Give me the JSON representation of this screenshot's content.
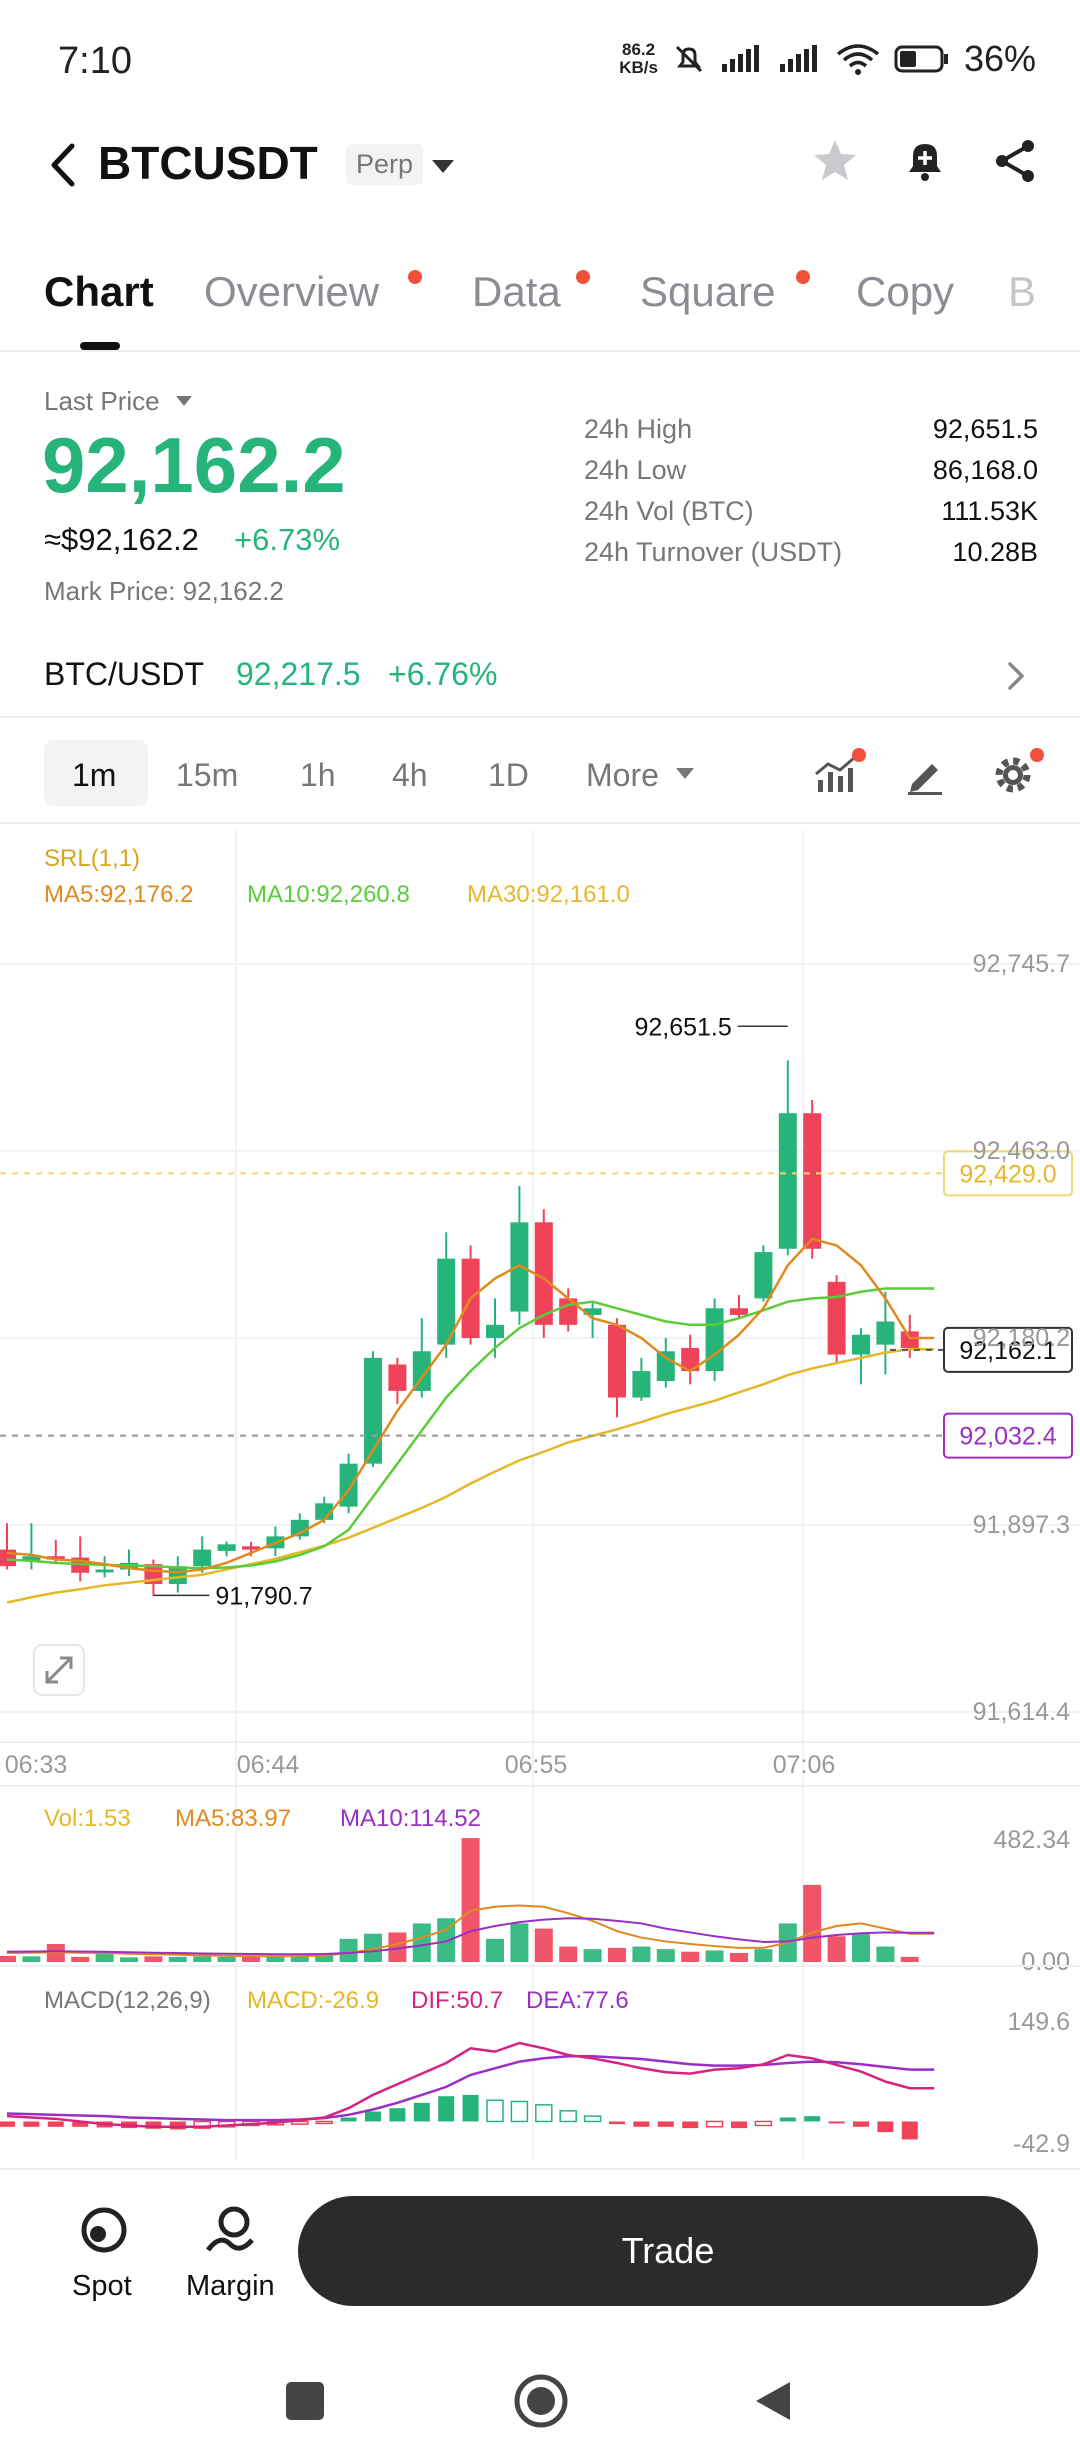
{
  "status_bar": {
    "time": "7:10",
    "net_speed_value": "86.2",
    "net_speed_unit": "KB/s",
    "battery": "36%"
  },
  "header": {
    "title": "BTCUSDT",
    "badge": "Perp"
  },
  "tabs": [
    {
      "label": "Chart",
      "active": true,
      "dot": false
    },
    {
      "label": "Overview",
      "active": false,
      "dot": true
    },
    {
      "label": "Data",
      "active": false,
      "dot": true
    },
    {
      "label": "Square",
      "active": false,
      "dot": true
    },
    {
      "label": "Copy",
      "active": false,
      "dot": false
    },
    {
      "label": "B",
      "active": false,
      "dot": false
    }
  ],
  "price": {
    "last_price_label": "Last Price",
    "last_price": "92,162.2",
    "usd_price": "≈$92,162.2",
    "change": "+6.73%",
    "mark_price": "Mark Price:  92,162.2"
  },
  "stats": [
    {
      "label": "24h High",
      "value": "92,651.5"
    },
    {
      "label": "24h Low",
      "value": "86,168.0"
    },
    {
      "label": "24h Vol (BTC)",
      "value": "111.53K"
    },
    {
      "label": "24h Turnover (USDT)",
      "value": "10.28B"
    }
  ],
  "spot_pair": {
    "pair": "BTC/USDT",
    "price": "92,217.5",
    "change": "+6.76%"
  },
  "timeframes": [
    "1m",
    "15m",
    "1h",
    "4h",
    "1D",
    "More"
  ],
  "colors": {
    "up": "#27b47a",
    "down": "#f0435a",
    "ma5": "#e08a1e",
    "ma10": "#5bcc3a",
    "ma30": "#e6b829",
    "macd_dif": "#d4247f",
    "macd_dea": "#9b2fc4",
    "vol_ma10": "#9b2fc4"
  },
  "chart_data": {
    "type": "candlestick",
    "indicator_srl": "SRL(1,1)",
    "ma_labels": [
      "MA5:92,176.2",
      "MA10:92,260.8",
      "MA30:92,161.0"
    ],
    "y_ticks": [
      "92,745.7",
      "92,463.0",
      "92,180.2",
      "91,897.3",
      "91,614.4"
    ],
    "y_tick_values": [
      92745.7,
      92463.0,
      92180.2,
      91897.3,
      91614.4
    ],
    "x_ticks": [
      "06:33",
      "06:44",
      "06:55",
      "07:06"
    ],
    "high_marker": {
      "label": "92,651.5",
      "value": 92651.5
    },
    "low_marker": {
      "label": "91,790.7",
      "value": 91790.7
    },
    "price_tags": [
      {
        "label": "92,429.0",
        "value": 92429.0,
        "style": "yellow"
      },
      {
        "label": "92,162.1",
        "value": 92162.1,
        "style": "black"
      },
      {
        "label": "92,032.4",
        "value": 92032.4,
        "style": "purple"
      }
    ],
    "candles": [
      {
        "o": 91860,
        "h": 91900,
        "l": 91830,
        "c": 91835
      },
      {
        "o": 91842,
        "h": 91900,
        "l": 91830,
        "c": 91850
      },
      {
        "o": 91850,
        "h": 91875,
        "l": 91840,
        "c": 91845
      },
      {
        "o": 91848,
        "h": 91880,
        "l": 91812,
        "c": 91825
      },
      {
        "o": 91828,
        "h": 91850,
        "l": 91818,
        "c": 91830
      },
      {
        "o": 91830,
        "h": 91860,
        "l": 91820,
        "c": 91840
      },
      {
        "o": 91838,
        "h": 91845,
        "l": 91790,
        "c": 91808
      },
      {
        "o": 91808,
        "h": 91850,
        "l": 91795,
        "c": 91835
      },
      {
        "o": 91835,
        "h": 91880,
        "l": 91825,
        "c": 91860
      },
      {
        "o": 91858,
        "h": 91872,
        "l": 91850,
        "c": 91868
      },
      {
        "o": 91865,
        "h": 91872,
        "l": 91850,
        "c": 91860
      },
      {
        "o": 91862,
        "h": 91895,
        "l": 91850,
        "c": 91880
      },
      {
        "o": 91880,
        "h": 91915,
        "l": 91875,
        "c": 91905
      },
      {
        "o": 91905,
        "h": 91940,
        "l": 91900,
        "c": 91930
      },
      {
        "o": 91925,
        "h": 92005,
        "l": 91915,
        "c": 91990
      },
      {
        "o": 91990,
        "h": 92160,
        "l": 91985,
        "c": 92150
      },
      {
        "o": 92140,
        "h": 92150,
        "l": 92080,
        "c": 92100
      },
      {
        "o": 92100,
        "h": 92210,
        "l": 92090,
        "c": 92160
      },
      {
        "o": 92170,
        "h": 92340,
        "l": 92150,
        "c": 92300
      },
      {
        "o": 92300,
        "h": 92320,
        "l": 92170,
        "c": 92180
      },
      {
        "o": 92180,
        "h": 92240,
        "l": 92150,
        "c": 92200
      },
      {
        "o": 92220,
        "h": 92410,
        "l": 92200,
        "c": 92355
      },
      {
        "o": 92355,
        "h": 92375,
        "l": 92180,
        "c": 92200
      },
      {
        "o": 92240,
        "h": 92255,
        "l": 92190,
        "c": 92200
      },
      {
        "o": 92215,
        "h": 92235,
        "l": 92180,
        "c": 92225
      },
      {
        "o": 92200,
        "h": 92210,
        "l": 92060,
        "c": 92090
      },
      {
        "o": 92090,
        "h": 92150,
        "l": 92085,
        "c": 92130
      },
      {
        "o": 92115,
        "h": 92180,
        "l": 92105,
        "c": 92160
      },
      {
        "o": 92165,
        "h": 92185,
        "l": 92110,
        "c": 92130
      },
      {
        "o": 92130,
        "h": 92240,
        "l": 92115,
        "c": 92225
      },
      {
        "o": 92225,
        "h": 92245,
        "l": 92210,
        "c": 92215
      },
      {
        "o": 92240,
        "h": 92320,
        "l": 92235,
        "c": 92310
      },
      {
        "o": 92315,
        "h": 92600,
        "l": 92305,
        "c": 92520
      },
      {
        "o": 92520,
        "h": 92540,
        "l": 92300,
        "c": 92315
      },
      {
        "o": 92265,
        "h": 92275,
        "l": 92140,
        "c": 92155
      },
      {
        "o": 92155,
        "h": 92195,
        "l": 92110,
        "c": 92185
      },
      {
        "o": 92170,
        "h": 92250,
        "l": 92125,
        "c": 92205
      },
      {
        "o": 92190,
        "h": 92215,
        "l": 92150,
        "c": 92165
      }
    ],
    "ma5": [
      91855,
      91852,
      91845,
      91843,
      91838,
      91832,
      91828,
      91826,
      91830,
      91840,
      91855,
      91870,
      91885,
      91905,
      91950,
      92010,
      92070,
      92120,
      92170,
      92240,
      92270,
      92290,
      92270,
      92240,
      92210,
      92200,
      92180,
      92150,
      92130,
      92155,
      92185,
      92225,
      92290,
      92330,
      92320,
      92290,
      92240,
      92180
    ],
    "ma10": [
      91845,
      91843,
      91840,
      91838,
      91837,
      91836,
      91835,
      91833,
      91832,
      91833,
      91836,
      91842,
      91852,
      91865,
      91890,
      91940,
      91990,
      92040,
      92090,
      92130,
      92165,
      92195,
      92215,
      92230,
      92235,
      92225,
      92215,
      92205,
      92200,
      92200,
      92210,
      92222,
      92235,
      92240,
      92242,
      92250,
      92255,
      92255
    ],
    "ma30": [
      91780,
      91788,
      91795,
      91800,
      91806,
      91810,
      91814,
      91818,
      91822,
      91830,
      91838,
      91846,
      91856,
      91866,
      91878,
      91893,
      91908,
      91923,
      91940,
      91960,
      91978,
      91995,
      92008,
      92022,
      92032,
      92042,
      92053,
      92065,
      92075,
      92085,
      92098,
      92110,
      92124,
      92134,
      92142,
      92150,
      92158,
      92163
    ],
    "volume": {
      "label": "Vol:1.53",
      "ma5_label": "MA5:83.97",
      "ma10_label": "MA10:114.52",
      "y_top": "482.34",
      "y_bottom": "0.00",
      "max": 482.34,
      "bars": [
        24,
        22,
        70,
        20,
        40,
        18,
        22,
        20,
        22,
        20,
        25,
        22,
        24,
        26,
        90,
        110,
        115,
        150,
        170,
        482,
        90,
        150,
        130,
        60,
        50,
        55,
        60,
        50,
        40,
        45,
        35,
        50,
        150,
        300,
        100,
        110,
        60,
        20
      ],
      "ma5": [
        35,
        36,
        38,
        36,
        35,
        32,
        30,
        28,
        26,
        24,
        23,
        22,
        23,
        25,
        35,
        50,
        70,
        95,
        125,
        200,
        215,
        220,
        215,
        190,
        160,
        120,
        95,
        80,
        70,
        62,
        55,
        55,
        75,
        115,
        140,
        150,
        130,
        110
      ],
      "ma10": [
        40,
        41,
        42,
        41,
        40,
        38,
        36,
        35,
        33,
        32,
        31,
        30,
        30,
        31,
        35,
        42,
        52,
        65,
        80,
        120,
        140,
        155,
        165,
        170,
        168,
        160,
        150,
        130,
        115,
        100,
        88,
        78,
        80,
        95,
        105,
        112,
        115,
        114
      ]
    },
    "macd": {
      "label": "MACD(12,26,9)",
      "macd_label": "MACD:-26.9",
      "dif_label": "DIF:50.7",
      "dea_label": "DEA:77.6",
      "y_top": "149.6",
      "y_bottom": "-42.9",
      "max": 149.6,
      "min": -42.9,
      "hist": [
        -8,
        -8,
        -8,
        -8,
        -9,
        -10,
        -11,
        -12,
        -10,
        -8,
        -6,
        -5,
        -4,
        -3,
        6,
        15,
        20,
        28,
        38,
        40,
        32,
        30,
        25,
        16,
        8,
        -4,
        -8,
        -8,
        -10,
        -8,
        -10,
        -6,
        6,
        8,
        -2,
        -8,
        -16,
        -27
      ],
      "dif": [
        8,
        6,
        4,
        0,
        -4,
        -6,
        -8,
        -8,
        -8,
        -6,
        -4,
        -2,
        2,
        6,
        20,
        40,
        56,
        72,
        88,
        110,
        105,
        118,
        110,
        100,
        95,
        88,
        80,
        74,
        72,
        78,
        80,
        86,
        100,
        95,
        85,
        75,
        60,
        50
      ],
      "dea": [
        12,
        11,
        10,
        9,
        8,
        6,
        5,
        4,
        3,
        2,
        2,
        2,
        3,
        5,
        10,
        18,
        28,
        40,
        52,
        70,
        80,
        90,
        95,
        98,
        98,
        96,
        94,
        90,
        86,
        84,
        84,
        85,
        88,
        90,
        89,
        86,
        82,
        78
      ]
    }
  },
  "bottom_bar": {
    "spot_label": "Spot",
    "margin_label": "Margin",
    "trade_label": "Trade"
  }
}
